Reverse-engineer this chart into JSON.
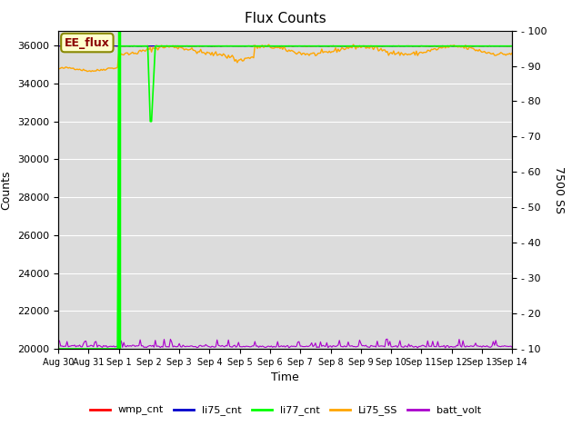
{
  "title": "Flux Counts",
  "xlabel": "Time",
  "ylabel_left": "Counts",
  "ylabel_right": "7500 SS",
  "ylim_left": [
    20000,
    36800
  ],
  "ylim_right": [
    10,
    100
  ],
  "yticks_left": [
    20000,
    22000,
    24000,
    26000,
    28000,
    30000,
    32000,
    34000,
    36000
  ],
  "yticks_right": [
    10,
    20,
    30,
    40,
    50,
    60,
    70,
    80,
    90,
    100
  ],
  "xtick_labels": [
    "Aug 30",
    "Aug 31",
    "Sep 1",
    "Sep 2",
    "Sep 3",
    "Sep 4",
    "Sep 5",
    "Sep 6",
    "Sep 7",
    "Sep 8",
    "Sep 9",
    "Sep 10",
    "Sep 11",
    "Sep 12",
    "Sep 13",
    "Sep 14"
  ],
  "background_color": "#dcdcdc",
  "annotation_text": "EE_flux",
  "line_colors": {
    "wmp_cnt": "#ff0000",
    "li75_cnt": "#0000cc",
    "li77_cnt": "#00ff00",
    "Li75_SS": "#ffa500",
    "batt_volt": "#aa00cc"
  },
  "vline_day": 2,
  "vline_color": "#00ff00",
  "grid_color": "#ffffff",
  "title_fontsize": 11,
  "axis_fontsize": 9,
  "tick_fontsize": 8
}
